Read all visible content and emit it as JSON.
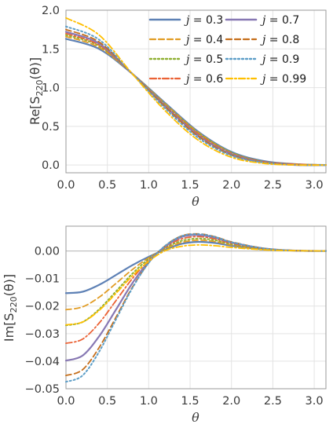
{
  "colors": {
    "grid": "#e3e3e3",
    "frame": "#9a9a9a",
    "zero_line": "#bdbdbd"
  },
  "chart_data": [
    {
      "type": "line",
      "title": "",
      "xlabel": "θ",
      "ylabel_text": "Re[S",
      "ylabel_sub": "220",
      "ylabel_tail": "(θ)]",
      "xlim": [
        0,
        3.1416
      ],
      "ylim": [
        -0.1,
        2.0
      ],
      "xticks": [
        "0.0",
        "0.5",
        "1.0",
        "1.5",
        "2.0",
        "2.5",
        "3.0"
      ],
      "yticks": [
        "0.0",
        "0.5",
        "1.0",
        "1.5",
        "2.0"
      ],
      "grid": true,
      "legend_position": "top-right",
      "legend_items": [
        {
          "j": "0.3",
          "color": "#5e81b5",
          "dash": "",
          "width": 2.2
        },
        {
          "j": "0.4",
          "color": "#e19c24",
          "dash": "7,4",
          "width": 1.8
        },
        {
          "j": "0.5",
          "color": "#8fb032",
          "dash": "2,3",
          "width": 2.0
        },
        {
          "j": "0.6",
          "color": "#eb6235",
          "dash": "8,3,2,3",
          "width": 1.8
        },
        {
          "j": "0.7",
          "color": "#8778b3",
          "dash": "",
          "width": 2.2
        },
        {
          "j": "0.8",
          "color": "#c56e1a",
          "dash": "7,4",
          "width": 1.8
        },
        {
          "j": "0.9",
          "color": "#5d9ec7",
          "dash": "2,3",
          "width": 2.0
        },
        {
          "j": "0.99",
          "color": "#ffbf00",
          "dash": "8,3,2,3",
          "width": 1.8
        }
      ],
      "series": [
        {
          "name": "j = 0.3",
          "x": [
            0,
            0.4,
            0.8,
            1.2,
            1.6,
            2.0,
            2.4,
            2.8,
            3.1416
          ],
          "y": [
            1.63,
            1.5,
            1.18,
            0.8,
            0.43,
            0.17,
            0.05,
            0.01,
            0.0
          ]
        },
        {
          "name": "j = 0.4",
          "x": [
            0,
            0.4,
            0.8,
            1.2,
            1.6,
            2.0,
            2.4,
            2.8,
            3.1416
          ],
          "y": [
            1.66,
            1.52,
            1.18,
            0.79,
            0.42,
            0.16,
            0.04,
            0.01,
            0.0
          ]
        },
        {
          "name": "j = 0.5",
          "x": [
            0,
            0.4,
            0.8,
            1.2,
            1.6,
            2.0,
            2.4,
            2.8,
            3.1416
          ],
          "y": [
            1.68,
            1.54,
            1.18,
            0.78,
            0.41,
            0.16,
            0.04,
            0.01,
            0.0
          ]
        },
        {
          "name": "j = 0.6",
          "x": [
            0,
            0.4,
            0.8,
            1.2,
            1.6,
            2.0,
            2.4,
            2.8,
            3.1416
          ],
          "y": [
            1.7,
            1.55,
            1.18,
            0.77,
            0.4,
            0.15,
            0.04,
            0.01,
            0.0
          ]
        },
        {
          "name": "j = 0.7",
          "x": [
            0,
            0.4,
            0.8,
            1.2,
            1.6,
            2.0,
            2.4,
            2.8,
            3.1416
          ],
          "y": [
            1.72,
            1.57,
            1.18,
            0.76,
            0.38,
            0.14,
            0.03,
            0.0,
            0.0
          ]
        },
        {
          "name": "j = 0.8",
          "x": [
            0,
            0.4,
            0.8,
            1.2,
            1.6,
            2.0,
            2.4,
            2.8,
            3.1416
          ],
          "y": [
            1.75,
            1.59,
            1.18,
            0.75,
            0.37,
            0.13,
            0.03,
            0.0,
            0.0
          ]
        },
        {
          "name": "j = 0.9",
          "x": [
            0,
            0.4,
            0.8,
            1.2,
            1.6,
            2.0,
            2.4,
            2.8,
            3.1416
          ],
          "y": [
            1.79,
            1.62,
            1.18,
            0.73,
            0.35,
            0.12,
            0.03,
            0.0,
            0.0
          ]
        },
        {
          "name": "j = 0.99",
          "x": [
            0,
            0.4,
            0.8,
            1.2,
            1.6,
            2.0,
            2.4,
            2.8,
            3.1416
          ],
          "y": [
            1.9,
            1.68,
            1.18,
            0.7,
            0.32,
            0.1,
            0.02,
            0.0,
            0.0
          ]
        }
      ]
    },
    {
      "type": "line",
      "title": "",
      "xlabel": "θ",
      "ylabel_text": "Im[S",
      "ylabel_sub": "220",
      "ylabel_tail": "(θ)]",
      "xlim": [
        0,
        3.1416
      ],
      "ylim": [
        -0.05,
        0.009
      ],
      "xticks": [
        "0.0",
        "0.5",
        "1.0",
        "1.5",
        "2.0",
        "2.5",
        "3.0"
      ],
      "yticks": [
        "0.00",
        "-0.01",
        "-0.02",
        "-0.03",
        "-0.04",
        "-0.05"
      ],
      "grid": true,
      "zero_line": true,
      "series": [
        {
          "name": "j = 0.3",
          "x": [
            0,
            0.2,
            0.4,
            0.6,
            0.8,
            1.0,
            1.2,
            1.4,
            1.6,
            1.8,
            2.0,
            2.4,
            2.8,
            3.1416
          ],
          "y": [
            -0.0153,
            -0.0148,
            -0.0123,
            -0.0088,
            -0.0052,
            -0.0021,
            0.0005,
            0.0026,
            0.0033,
            0.0029,
            0.0019,
            0.0005,
            0.0001,
            0.0
          ]
        },
        {
          "name": "j = 0.4",
          "x": [
            0,
            0.2,
            0.4,
            0.6,
            0.8,
            1.0,
            1.2,
            1.4,
            1.6,
            1.8,
            2.0,
            2.4,
            2.8,
            3.1416
          ],
          "y": [
            -0.0213,
            -0.0203,
            -0.0168,
            -0.0119,
            -0.0068,
            -0.0025,
            0.0008,
            0.0031,
            0.0039,
            0.0034,
            0.0022,
            0.0006,
            0.0001,
            0.0
          ]
        },
        {
          "name": "j = 0.5",
          "x": [
            0,
            0.2,
            0.4,
            0.6,
            0.8,
            1.0,
            1.2,
            1.4,
            1.6,
            1.8,
            2.0,
            2.4,
            2.8,
            3.1416
          ],
          "y": [
            -0.027,
            -0.0258,
            -0.0212,
            -0.0148,
            -0.0083,
            -0.0029,
            0.0011,
            0.0037,
            0.0045,
            0.0039,
            0.0025,
            0.0007,
            0.0001,
            0.0
          ]
        },
        {
          "name": "j = 0.6",
          "x": [
            0,
            0.2,
            0.4,
            0.6,
            0.8,
            1.0,
            1.2,
            1.4,
            1.6,
            1.8,
            2.0,
            2.4,
            2.8,
            3.1416
          ],
          "y": [
            -0.0335,
            -0.032,
            -0.0262,
            -0.0182,
            -0.0101,
            -0.0034,
            0.0014,
            0.0044,
            0.0052,
            0.0044,
            0.0028,
            0.0008,
            0.0001,
            0.0
          ]
        },
        {
          "name": "j = 0.7",
          "x": [
            0,
            0.2,
            0.4,
            0.6,
            0.8,
            1.0,
            1.2,
            1.4,
            1.6,
            1.8,
            2.0,
            2.4,
            2.8,
            3.1416
          ],
          "y": [
            -0.0398,
            -0.038,
            -0.031,
            -0.0215,
            -0.0118,
            -0.0039,
            0.0017,
            0.0051,
            0.0058,
            0.0049,
            0.0031,
            0.0009,
            0.0001,
            0.0
          ]
        },
        {
          "name": "j = 0.8",
          "x": [
            0,
            0.2,
            0.4,
            0.6,
            0.8,
            1.0,
            1.2,
            1.4,
            1.6,
            1.8,
            2.0,
            2.4,
            2.8,
            3.1416
          ],
          "y": [
            -0.0452,
            -0.0431,
            -0.0351,
            -0.0243,
            -0.0133,
            -0.0043,
            0.0019,
            0.0055,
            0.0062,
            0.0052,
            0.0033,
            0.0009,
            0.0001,
            0.0
          ]
        },
        {
          "name": "j = 0.9",
          "x": [
            0,
            0.2,
            0.4,
            0.6,
            0.8,
            1.0,
            1.2,
            1.4,
            1.6,
            1.8,
            2.0,
            2.4,
            2.8,
            3.1416
          ],
          "y": [
            -0.0475,
            -0.0452,
            -0.0366,
            -0.0251,
            -0.0136,
            -0.0043,
            0.0019,
            0.0054,
            0.0061,
            0.0051,
            0.0032,
            0.0009,
            0.0001,
            0.0
          ]
        },
        {
          "name": "j = 0.99",
          "x": [
            0,
            0.2,
            0.4,
            0.6,
            0.8,
            1.0,
            1.2,
            1.4,
            1.6,
            1.8,
            2.0,
            2.4,
            2.8,
            3.1416
          ],
          "y": [
            -0.0268,
            -0.0258,
            -0.0216,
            -0.0155,
            -0.0091,
            -0.0037,
            0.0001,
            0.0017,
            0.0022,
            0.0019,
            0.0013,
            0.0004,
            0.0001,
            0.0
          ]
        }
      ]
    }
  ]
}
